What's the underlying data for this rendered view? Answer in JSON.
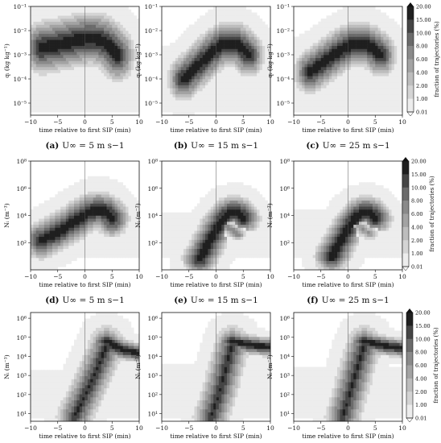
{
  "figure": {
    "x_axis_label": "time relative to first SIP (min)",
    "x_ticks": [
      "−10",
      "−5",
      "0",
      "5",
      "10"
    ],
    "colorbar_label": "fraction of trajectories (%)",
    "colorbar_ticks": [
      "20.00",
      "15.00",
      "10.00",
      "8.00",
      "6.00",
      "4.00",
      "2.00",
      "1.00",
      "0.01"
    ]
  },
  "chart_data": [
    {
      "id": "a",
      "type": "heatmap",
      "caption_letter": "(a)",
      "caption_text": "U∞ = 5 m s−1",
      "ylabel": "qᵢ (kg kg⁻¹)",
      "yticks": [
        "10⁻¹",
        "10⁻²",
        "10⁻³",
        "10⁻⁴",
        "10⁻⁵"
      ],
      "xlim": [
        -10,
        10
      ],
      "ylim_log10": [
        -5.5,
        -1
      ],
      "variable": "qi",
      "wind_speed_ms": 5,
      "floor": [
        -5.4,
        -2.0
      ],
      "shapes": [
        {
          "x0": -8,
          "y0": -2.7,
          "x1": 0.5,
          "y1": -2.4,
          "x2": 2,
          "y2": -1.9,
          "x3": 6,
          "y3": -3.0,
          "width": 0.55,
          "intensity": 1.0,
          "halo": 2.2
        }
      ]
    },
    {
      "id": "b",
      "type": "heatmap",
      "caption_letter": "(b)",
      "caption_text": "U∞ = 15 m s−1",
      "ylabel": "qᵢ (kg kg⁻¹)",
      "yticks": [
        "10⁻¹",
        "10⁻²",
        "10⁻³",
        "10⁻⁴",
        "10⁻⁵"
      ],
      "xlim": [
        -10,
        10
      ],
      "ylim_log10": [
        -5.5,
        -1
      ],
      "variable": "qi",
      "wind_speed_ms": 15,
      "floor": [
        -5.4,
        -2.6
      ],
      "shapes": [
        {
          "x0": -6,
          "y0": -4.0,
          "x1": 0,
          "y1": -2.8,
          "x2": 2,
          "y2": -1.9,
          "x3": 6,
          "y3": -3.0,
          "width": 0.5,
          "intensity": 1.0,
          "halo": 2.0
        }
      ]
    },
    {
      "id": "c",
      "type": "heatmap",
      "caption_letter": "(c)",
      "caption_text": "U∞ = 25 m s−1",
      "ylabel": "qᵢ (kg kg⁻¹)",
      "yticks": [
        "10⁻¹",
        "10⁻²",
        "10⁻³",
        "10⁻⁴",
        "10⁻⁵"
      ],
      "xlim": [
        -10,
        10
      ],
      "ylim_log10": [
        -5.5,
        -1
      ],
      "variable": "qi",
      "wind_speed_ms": 25,
      "floor": [
        -5.4,
        -2.2
      ],
      "shapes": [
        {
          "x0": -7,
          "y0": -3.7,
          "x1": -1,
          "y1": -2.8,
          "x2": 1.5,
          "y2": -2.0,
          "x3": 6,
          "y3": -3.0,
          "width": 0.5,
          "intensity": 1.0,
          "halo": 2.0
        }
      ]
    },
    {
      "id": "d",
      "type": "heatmap",
      "caption_letter": "(d)",
      "caption_text": "U∞ = 5 m s−1",
      "ylabel": "Nᵢ (m⁻³)",
      "yticks": [
        "10⁸",
        "10⁶",
        "10⁴",
        "10²"
      ],
      "xlim": [
        -10,
        10
      ],
      "ylim_log10": [
        0,
        8
      ],
      "variable": "Ni",
      "wind_speed_ms": 5,
      "floor": [
        0.8,
        3.4
      ],
      "shapes": [
        {
          "x0": -8,
          "y0": 2.2,
          "x1": -1,
          "y1": 3.4,
          "x2": 2,
          "y2": 5.4,
          "x3": 5,
          "y3": 3.8,
          "width": 0.7,
          "intensity": 1.0,
          "halo": 2.2
        }
      ]
    },
    {
      "id": "e",
      "type": "heatmap",
      "caption_letter": "(e)",
      "caption_text": "U∞ = 15 m s−1",
      "ylabel": "Nᵢ (m⁻³)",
      "yticks": [
        "10⁸",
        "10⁶",
        "10⁴",
        "10²"
      ],
      "xlim": [
        -10,
        10
      ],
      "ylim_log10": [
        0,
        8
      ],
      "variable": "Ni",
      "wind_speed_ms": 15,
      "floor": [
        0.8,
        4.2
      ],
      "shapes": [
        {
          "x0": -3,
          "y0": 0.8,
          "x1": 0,
          "y1": 3,
          "x2": 2.5,
          "y2": 5.3,
          "x3": 5,
          "y3": 3.8,
          "width": 0.6,
          "intensity": 1.0,
          "halo": 2.2
        },
        {
          "x0": 2,
          "y0": 3.2,
          "x1": 2.6,
          "y1": 3.0,
          "x2": 3.4,
          "y2": 2.9,
          "x3": 4,
          "y3": 2.6,
          "width": 0.35,
          "intensity": 0.55,
          "halo": 1.2
        }
      ]
    },
    {
      "id": "f",
      "type": "heatmap",
      "caption_letter": "(f)",
      "caption_text": "U∞ = 25 m s−1",
      "ylabel": "Nᵢ (m⁻³)",
      "yticks": [
        "10⁸",
        "10⁶",
        "10⁴",
        "10²"
      ],
      "xlim": [
        -10,
        10
      ],
      "ylim_log10": [
        0,
        8
      ],
      "variable": "Ni",
      "wind_speed_ms": 25,
      "floor": [
        0.8,
        4.4
      ],
      "shapes": [
        {
          "x0": -3,
          "y0": 1,
          "x1": 0,
          "y1": 3,
          "x2": 2.5,
          "y2": 5.3,
          "x3": 5,
          "y3": 3.8,
          "width": 0.6,
          "intensity": 1.0,
          "halo": 2.2
        },
        {
          "x0": 2,
          "y0": 3.2,
          "x1": 2.6,
          "y1": 3.0,
          "x2": 3.4,
          "y2": 2.9,
          "x3": 4,
          "y3": 2.6,
          "width": 0.35,
          "intensity": 0.5,
          "halo": 1.2
        }
      ]
    },
    {
      "id": "g",
      "type": "heatmap",
      "caption_letter": "(g)",
      "caption_text": "U∞ = 5 m s−1",
      "ylabel": "Nᵢ (m⁻³)",
      "yticks": [
        "10⁶",
        "10⁵",
        "10⁴",
        "10³",
        "10²",
        "10¹"
      ],
      "xlim": [
        -10,
        10
      ],
      "ylim_log10": [
        0.6,
        6.3
      ],
      "variable": "Ni",
      "wind_speed_ms": 5,
      "floor": [
        0.7,
        3.3
      ],
      "shapes": [
        {
          "x0": -2,
          "y0": 0.8,
          "x1": 0.5,
          "y1": 2.2,
          "x2": 3,
          "y2": 3.8,
          "x3": 4,
          "y3": 4.6,
          "width": 0.5,
          "intensity": 0.85,
          "halo": 2.2
        },
        {
          "x0": 4,
          "y0": 4.8,
          "x1": 6,
          "y1": 4.4,
          "x2": 8,
          "y2": 4.25,
          "x3": 10,
          "y3": 4.2,
          "width": 0.28,
          "intensity": 1.0,
          "halo": 2.0
        }
      ]
    },
    {
      "id": "h",
      "type": "heatmap",
      "caption_letter": "(h)",
      "caption_text": "U∞ = 15 m s−1",
      "ylabel": "Nᵢ (m⁻³)",
      "yticks": [
        "10⁶",
        "10⁵",
        "10⁴",
        "10³",
        "10²",
        "10¹"
      ],
      "xlim": [
        -10,
        10
      ],
      "ylim_log10": [
        0.6,
        6.3
      ],
      "variable": "Ni",
      "wind_speed_ms": 15,
      "floor": [
        0.7,
        3.6
      ],
      "shapes": [
        {
          "x0": -1,
          "y0": 0.8,
          "x1": 1,
          "y1": 2.2,
          "x2": 2,
          "y2": 3.8,
          "x3": 3,
          "y3": 4.6,
          "width": 0.5,
          "intensity": 0.85,
          "halo": 2.2
        },
        {
          "x0": 3,
          "y0": 4.8,
          "x1": 6,
          "y1": 4.6,
          "x2": 8,
          "y2": 4.55,
          "x3": 10,
          "y3": 4.5,
          "width": 0.28,
          "intensity": 1.0,
          "halo": 2.0
        }
      ]
    },
    {
      "id": "i",
      "type": "heatmap",
      "caption_letter": "(i)",
      "caption_text": "U∞ = 25 m s−1",
      "ylabel": "Nᵢ (m⁻³)",
      "yticks": [
        "10⁶",
        "10⁵",
        "10⁴",
        "10³",
        "10²",
        "10¹"
      ],
      "xlim": [
        -10,
        10
      ],
      "ylim_log10": [
        0.6,
        6.3
      ],
      "variable": "Ni",
      "wind_speed_ms": 25,
      "floor": [
        0.7,
        3.5
      ],
      "shapes": [
        {
          "x0": -1,
          "y0": 0.8,
          "x1": 0.5,
          "y1": 2.2,
          "x2": 2,
          "y2": 3.8,
          "x3": 3,
          "y3": 4.6,
          "width": 0.5,
          "intensity": 0.85,
          "halo": 2.2
        },
        {
          "x0": 3,
          "y0": 4.8,
          "x1": 6,
          "y1": 4.6,
          "x2": 8,
          "y2": 4.5,
          "x3": 10,
          "y3": 4.45,
          "width": 0.28,
          "intensity": 1.0,
          "halo": 2.0
        }
      ]
    }
  ]
}
